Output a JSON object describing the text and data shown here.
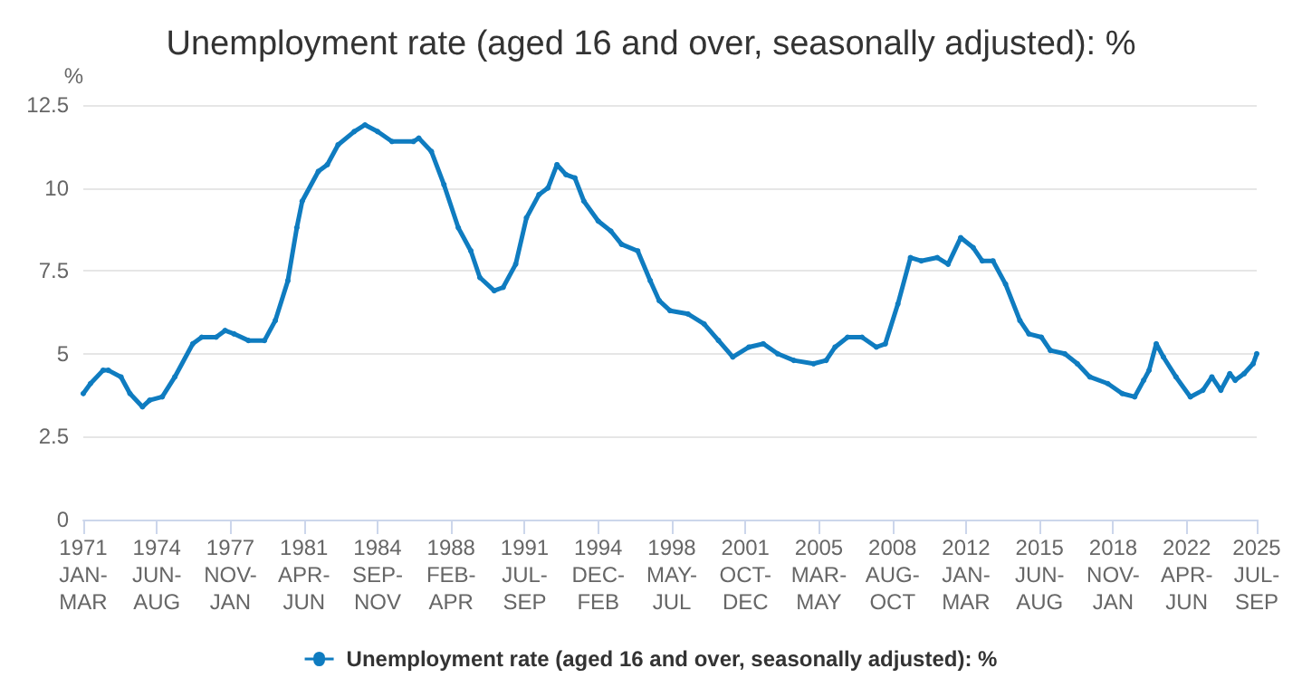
{
  "chart_data": {
    "type": "line",
    "title": "Unemployment rate (aged 16 and over, seasonally adjusted): %",
    "ylabel": "%",
    "x": [
      "1971-01",
      "1971-05",
      "1971-12",
      "1972-03",
      "1972-10",
      "1973-03",
      "1973-10",
      "1974-02",
      "1974-09",
      "1975-04",
      "1976-02",
      "1976-07",
      "1977-03",
      "1977-08",
      "1978-01",
      "1978-09",
      "1979-06",
      "1979-12",
      "1980-07",
      "1980-12",
      "1981-03",
      "1981-12",
      "1982-05",
      "1982-11",
      "1983-08",
      "1984-02",
      "1984-09",
      "1985-05",
      "1986-05",
      "1986-08",
      "1987-03",
      "1987-10",
      "1988-06",
      "1989-01",
      "1989-06",
      "1990-02",
      "1990-07",
      "1991-02",
      "1991-08",
      "1992-03",
      "1992-08",
      "1993-01",
      "1993-06",
      "1993-11",
      "1994-04",
      "1994-12",
      "1995-07",
      "1996-01",
      "1996-10",
      "1997-05",
      "1997-10",
      "1998-04",
      "1999-02",
      "1999-11",
      "2000-07",
      "2001-03",
      "2001-12",
      "2002-08",
      "2003-04",
      "2004-01",
      "2004-12",
      "2005-07",
      "2005-12",
      "2006-07",
      "2007-03",
      "2007-11",
      "2008-04",
      "2008-11",
      "2009-06",
      "2009-12",
      "2010-09",
      "2011-03",
      "2011-10",
      "2012-05",
      "2012-10",
      "2013-04",
      "2013-11",
      "2014-07",
      "2014-12",
      "2015-07",
      "2015-12",
      "2016-08",
      "2017-03",
      "2017-10",
      "2018-08",
      "2019-04",
      "2019-11",
      "2020-04",
      "2020-07",
      "2020-11",
      "2021-03",
      "2021-10",
      "2022-06",
      "2023-01",
      "2023-06",
      "2023-11",
      "2024-04",
      "2024-07",
      "2024-12",
      "2025-05",
      "2025-07"
    ],
    "series": [
      {
        "name": "Unemployment rate (aged 16 and over, seasonally adjusted): %",
        "color": "#0f7cc0",
        "values": [
          3.8,
          4.1,
          4.5,
          4.5,
          4.3,
          3.8,
          3.4,
          3.6,
          3.7,
          4.3,
          5.3,
          5.5,
          5.5,
          5.7,
          5.6,
          5.4,
          5.4,
          6.0,
          7.2,
          8.8,
          9.6,
          10.5,
          10.7,
          11.3,
          11.7,
          11.9,
          11.7,
          11.4,
          11.4,
          11.5,
          11.1,
          10.1,
          8.8,
          8.1,
          7.3,
          6.9,
          7.0,
          7.7,
          9.1,
          9.8,
          10.0,
          10.7,
          10.4,
          10.3,
          9.6,
          9.0,
          8.7,
          8.3,
          8.1,
          7.2,
          6.6,
          6.3,
          6.2,
          5.9,
          5.4,
          4.9,
          5.2,
          5.3,
          5.0,
          4.8,
          4.7,
          4.8,
          5.2,
          5.5,
          5.5,
          5.2,
          5.3,
          6.5,
          7.9,
          7.8,
          7.9,
          7.7,
          8.5,
          8.2,
          7.8,
          7.8,
          7.1,
          6.0,
          5.6,
          5.5,
          5.1,
          5.0,
          4.7,
          4.3,
          4.1,
          3.8,
          3.7,
          4.2,
          4.5,
          5.3,
          4.9,
          4.3,
          3.7,
          3.9,
          4.3,
          3.9,
          4.4,
          4.2,
          4.4,
          4.7,
          5.0
        ]
      }
    ],
    "xlim": [
      "1971-01",
      "2025-07"
    ],
    "xticks": [
      {
        "value": "1971-01",
        "label": "1971\nJAN-\nMAR"
      },
      {
        "value": "1974-06",
        "label": "1974\nJUN-\nAUG"
      },
      {
        "value": "1977-11",
        "label": "1977\nNOV-\nJAN"
      },
      {
        "value": "1981-04",
        "label": "1981\nAPR-\nJUN"
      },
      {
        "value": "1984-09",
        "label": "1984\nSEP-\nNOV"
      },
      {
        "value": "1988-02",
        "label": "1988\nFEB-\nAPR"
      },
      {
        "value": "1991-07",
        "label": "1991\nJUL-\nSEP"
      },
      {
        "value": "1994-12",
        "label": "1994\nDEC-\nFEB"
      },
      {
        "value": "1998-05",
        "label": "1998\nMAY-\nJUL"
      },
      {
        "value": "2001-10",
        "label": "2001\nOCT-\nDEC"
      },
      {
        "value": "2005-03",
        "label": "2005\nMAR-\nMAY"
      },
      {
        "value": "2008-08",
        "label": "2008\nAUG-\nOCT"
      },
      {
        "value": "2012-01",
        "label": "2012\nJAN-\nMAR"
      },
      {
        "value": "2015-06",
        "label": "2015\nJUN-\nAUG"
      },
      {
        "value": "2018-11",
        "label": "2018\nNOV-\nJAN"
      },
      {
        "value": "2022-04",
        "label": "2022\nAPR-\nJUN"
      },
      {
        "value": "2025-07",
        "label": "2025\nJUL-\nSEP"
      }
    ],
    "ylim": [
      0,
      12.5
    ],
    "yticks": [
      0,
      2.5,
      5,
      7.5,
      10,
      12.5
    ],
    "grid": "y",
    "legend": "bottom",
    "marker": "circle",
    "line_style": "solid"
  }
}
